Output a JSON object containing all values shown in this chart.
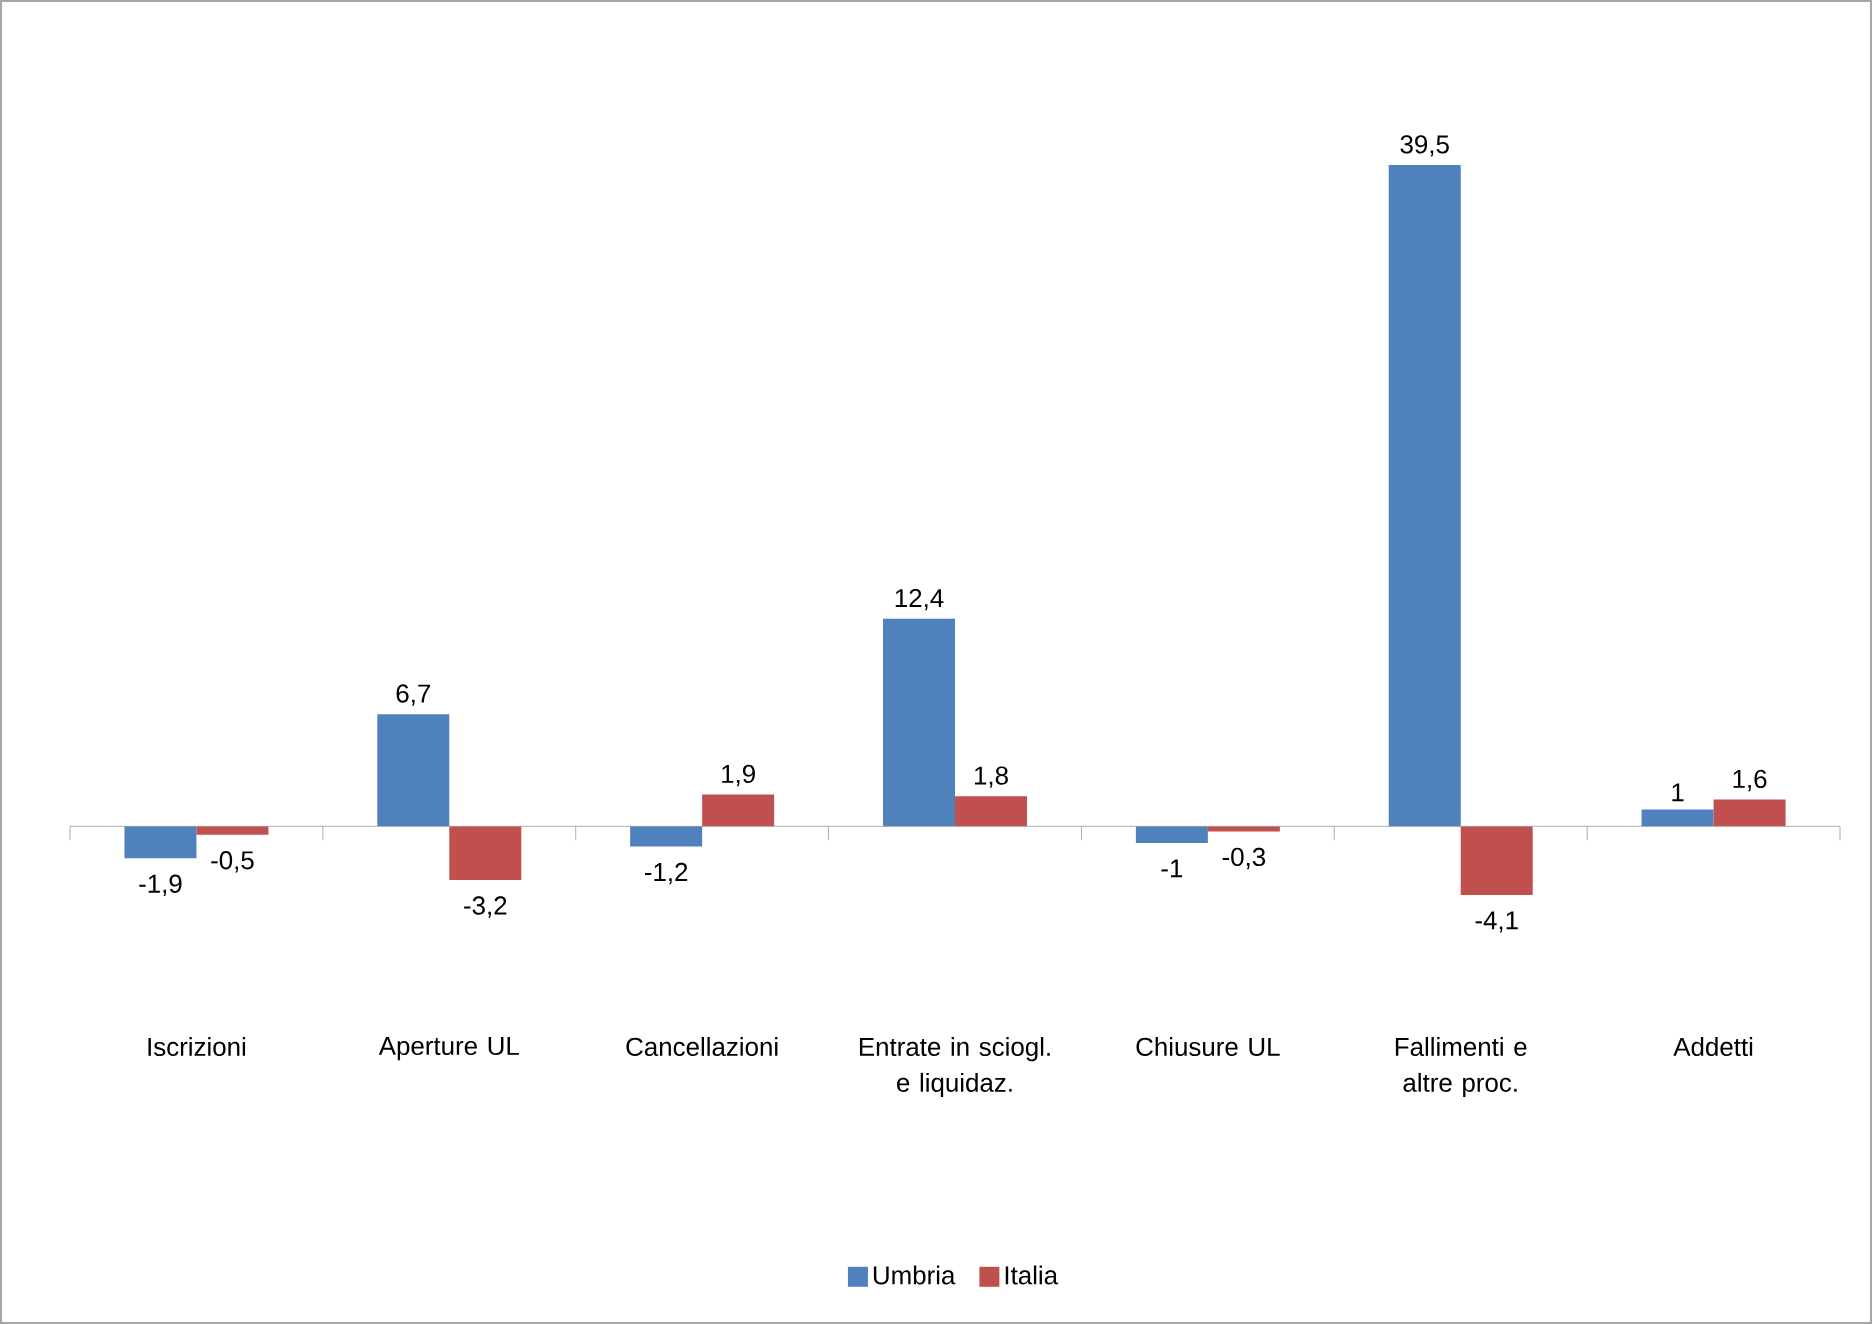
{
  "chart_data": {
    "type": "bar",
    "categories": [
      "Iscrizioni",
      "Aperture UL",
      "Cancellazioni",
      "Entrate in sciogl. e liquidaz.",
      "Chiusure UL",
      "Fallimenti e altre proc.",
      "Addetti"
    ],
    "series": [
      {
        "name": "Umbria",
        "color": "#4f81bd",
        "values": [
          -1.9,
          6.7,
          -1.2,
          12.4,
          -1,
          39.5,
          1
        ],
        "value_labels": [
          "-1,9",
          "6,7",
          "-1,2",
          "12,4",
          "-1",
          "39,5",
          "1"
        ]
      },
      {
        "name": "Italia",
        "color": "#c0504d",
        "values": [
          -0.5,
          -3.2,
          1.9,
          1.8,
          -0.3,
          -4.1,
          1.6
        ],
        "value_labels": [
          "-0,5",
          "-3,2",
          "1,9",
          "1,8",
          "-0,3",
          "-4,1",
          "1,6"
        ]
      }
    ],
    "legend": "bottom"
  }
}
